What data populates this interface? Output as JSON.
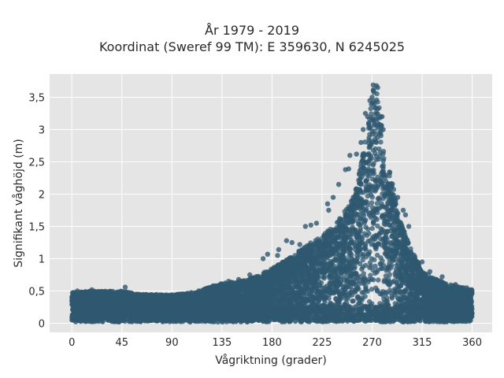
{
  "chart_data": {
    "type": "scatter",
    "title_line1": "År 1979 - 2019",
    "title_line2": "Koordinat (Sweref 99 TM): E 359630, N 6245025",
    "xlabel": "Vågriktning (grader)",
    "ylabel": "Signifikant våghöjd (m)",
    "xlim": [
      -20,
      378
    ],
    "ylim": [
      -0.14,
      3.86
    ],
    "x_ticks": [
      0,
      45,
      90,
      135,
      180,
      225,
      270,
      315,
      360
    ],
    "x_tick_labels": [
      "0",
      "45",
      "90",
      "135",
      "180",
      "225",
      "270",
      "315",
      "360"
    ],
    "y_ticks": [
      0,
      0.5,
      1,
      1.5,
      2,
      2.5,
      3,
      3.5
    ],
    "y_tick_labels": [
      "0",
      "0,5",
      "1",
      "1,5",
      "2",
      "2,5",
      "3",
      "3,5"
    ],
    "grid": true,
    "marker_color": "#2f5870",
    "plot_background": "#e5e5e5",
    "upper_envelope": [
      [
        0,
        0.48
      ],
      [
        20,
        0.5
      ],
      [
        45,
        0.5
      ],
      [
        60,
        0.45
      ],
      [
        90,
        0.44
      ],
      [
        110,
        0.48
      ],
      [
        135,
        0.62
      ],
      [
        150,
        0.65
      ],
      [
        165,
        0.72
      ],
      [
        180,
        0.85
      ],
      [
        195,
        1.0
      ],
      [
        210,
        1.2
      ],
      [
        225,
        1.35
      ],
      [
        240,
        1.6
      ],
      [
        250,
        1.85
      ],
      [
        258,
        2.3
      ],
      [
        264,
        2.85
      ],
      [
        268,
        3.3
      ],
      [
        270,
        3.55
      ],
      [
        272,
        3.7
      ],
      [
        274,
        3.6
      ],
      [
        278,
        3.2
      ],
      [
        282,
        2.6
      ],
      [
        288,
        2.2
      ],
      [
        295,
        1.6
      ],
      [
        305,
        1.15
      ],
      [
        315,
        0.82
      ],
      [
        325,
        0.7
      ],
      [
        340,
        0.6
      ],
      [
        360,
        0.52
      ]
    ],
    "outliers": [
      [
        274,
        3.68
      ],
      [
        271,
        3.69
      ],
      [
        275,
        3.65
      ],
      [
        270,
        3.5
      ],
      [
        268,
        3.45
      ],
      [
        272,
        3.4
      ],
      [
        264,
        3.25
      ],
      [
        266,
        3.2
      ],
      [
        279,
        3.2
      ],
      [
        262,
        3.0
      ],
      [
        280,
        3.0
      ],
      [
        260,
        2.8
      ],
      [
        256,
        2.62
      ],
      [
        250,
        2.6
      ],
      [
        249,
        2.39
      ],
      [
        246,
        2.38
      ],
      [
        240,
        2.15
      ],
      [
        235,
        1.95
      ],
      [
        230,
        1.85
      ],
      [
        231,
        1.75
      ],
      [
        293,
        1.95
      ],
      [
        298,
        1.75
      ],
      [
        300,
        1.68
      ],
      [
        303,
        1.5
      ],
      [
        220,
        1.55
      ],
      [
        215,
        1.52
      ],
      [
        210,
        1.5
      ],
      [
        193,
        1.28
      ],
      [
        198,
        1.25
      ],
      [
        205,
        1.22
      ],
      [
        186,
        1.14
      ],
      [
        176,
        1.07
      ],
      [
        172,
        1.0
      ],
      [
        185,
        1.05
      ],
      [
        160,
        0.75
      ],
      [
        150,
        0.68
      ],
      [
        141,
        0.65
      ],
      [
        127,
        0.58
      ],
      [
        48,
        0.56
      ],
      [
        18,
        0.52
      ],
      [
        5,
        0.5
      ],
      [
        315,
        0.95
      ],
      [
        322,
        0.8
      ],
      [
        333,
        0.72
      ],
      [
        345,
        0.6
      ],
      [
        355,
        0.55
      ],
      [
        357,
        0.52
      ],
      [
        330,
        0.63
      ]
    ]
  }
}
